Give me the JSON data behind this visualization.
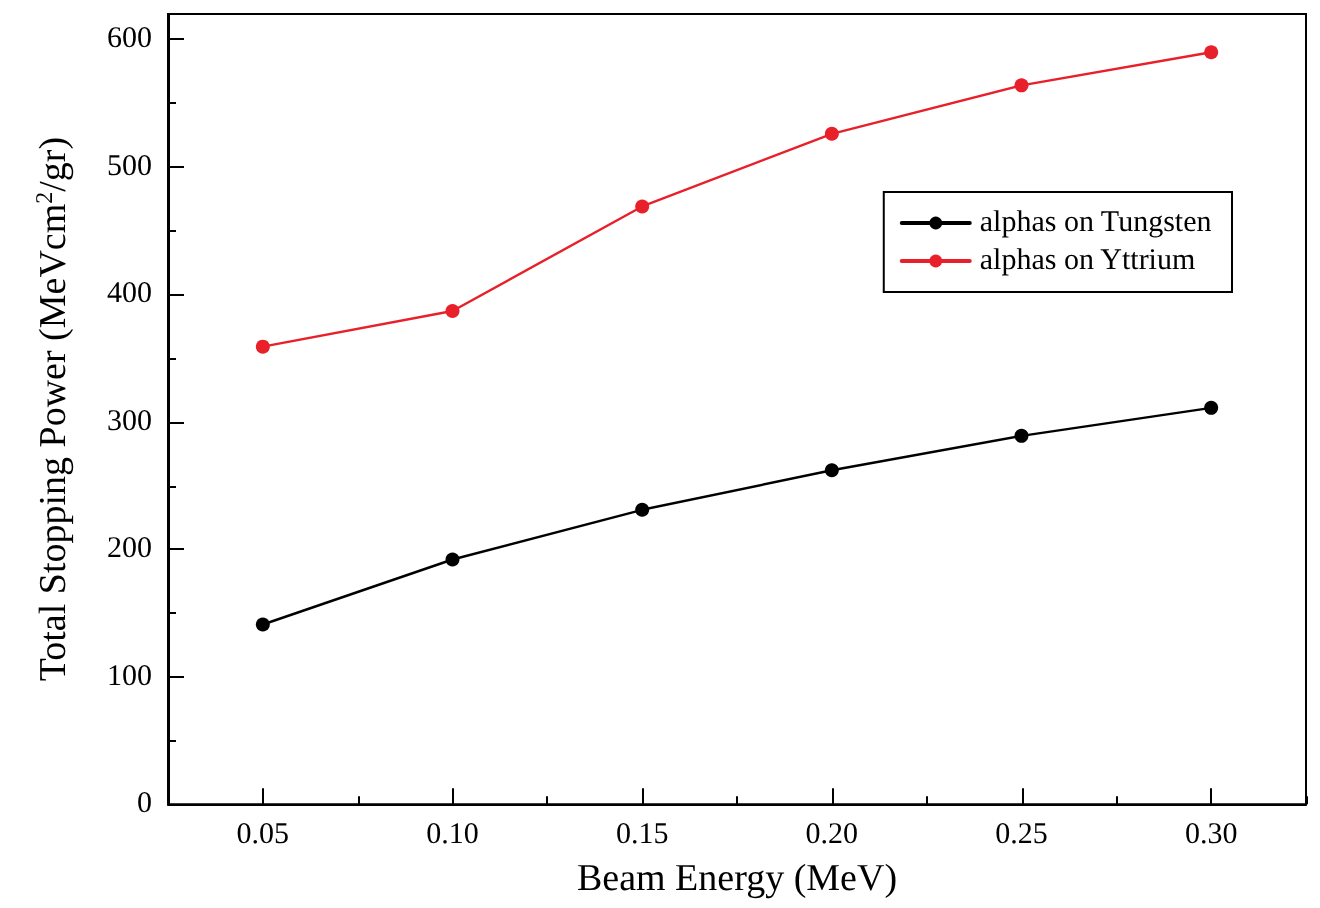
{
  "chart_data": {
    "type": "line",
    "xlabel": "Beam Energy (MeV)",
    "ylabel": "Total Stopping Power (MeVcm$^{2}$/gr)",
    "x": [
      0.05,
      0.1,
      0.15,
      0.2,
      0.25,
      0.3
    ],
    "series": [
      {
        "name": "alphas on Tungsten",
        "color": "#000000",
        "values": [
          141,
          192,
          231,
          262,
          289,
          311
        ]
      },
      {
        "name": "alphas on Yttrium",
        "color": "#e8202a",
        "values": [
          359,
          387,
          469,
          526,
          564,
          590
        ]
      }
    ],
    "xlim": [
      0.025,
      0.325
    ],
    "xticks": [
      {
        "value": 0.05,
        "label": "0.05"
      },
      {
        "value": 0.1,
        "label": "0.10"
      },
      {
        "value": 0.15,
        "label": "0.15"
      },
      {
        "value": 0.2,
        "label": "0.20"
      },
      {
        "value": 0.25,
        "label": "0.25"
      },
      {
        "value": 0.3,
        "label": "0.30"
      }
    ],
    "ylim": [
      0,
      620
    ],
    "yticks": [
      0,
      100,
      200,
      300,
      400,
      500,
      600
    ],
    "grid": false,
    "legend": "top right",
    "marker": "circle",
    "line_style": "solid"
  }
}
